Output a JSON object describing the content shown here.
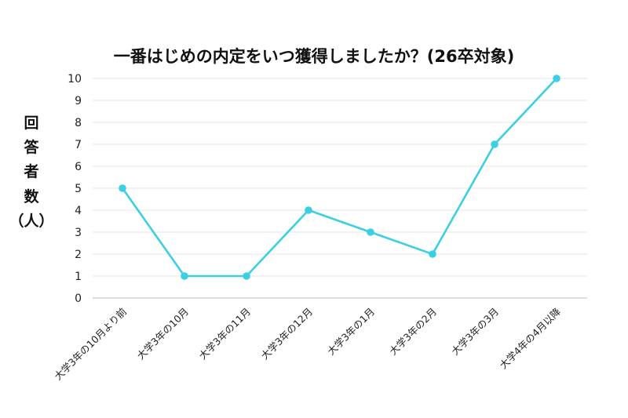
{
  "chart_data": {
    "type": "line",
    "title": "一番はじめの内定をいつ獲得しましたか？(26卒対象)",
    "xlabel": "",
    "ylabel": "回答者数（人）",
    "ylabel_chars": [
      "回",
      "答",
      "者",
      "数",
      "（人）"
    ],
    "categories": [
      "大学3年の10月より前",
      "大学3年の10月",
      "大学3年の11月",
      "大学3年の12月",
      "大学3年の1月",
      "大学3年の2月",
      "大学3年の3月",
      "大学4年の4月以降"
    ],
    "series": [
      {
        "name": "回答者数",
        "values": [
          5,
          1,
          1,
          4,
          3,
          2,
          7,
          10
        ],
        "color": "#3ccfe3"
      }
    ],
    "ylim": [
      0,
      10
    ],
    "yticks": [
      0,
      1,
      2,
      3,
      4,
      5,
      6,
      7,
      8,
      9,
      10
    ],
    "grid": true,
    "legend": "none"
  }
}
